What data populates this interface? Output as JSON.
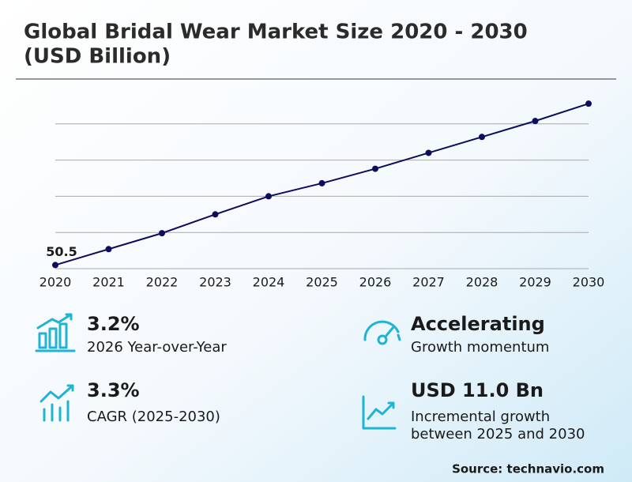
{
  "title": "Global Bridal Wear Market Size 2020 - 2030",
  "subtitle": "(USD Billion)",
  "chart_data": {
    "type": "line",
    "categories": [
      "2020",
      "2021",
      "2022",
      "2023",
      "2024",
      "2025",
      "2026",
      "2027",
      "2028",
      "2029",
      "2030"
    ],
    "values": [
      50.5,
      52.7,
      54.9,
      57.5,
      60.0,
      61.8,
      63.8,
      66.0,
      68.2,
      70.4,
      72.8
    ],
    "value_labels": [
      "50.5",
      null,
      null,
      null,
      null,
      null,
      null,
      null,
      null,
      null,
      null
    ],
    "color": "#0d0d5c",
    "ylim": [
      50,
      75
    ],
    "yticks": [
      50,
      55,
      60,
      65,
      70
    ],
    "show_ytick_labels": false,
    "grid": true
  },
  "stats": [
    {
      "value": "3.2%",
      "label": "2026 Year-over-Year"
    },
    {
      "value": "Accelerating",
      "label": "Growth momentum"
    },
    {
      "value": "3.3%",
      "label": "CAGR (2025-2030)"
    },
    {
      "value": "USD 11.0 Bn",
      "label": [
        "Incremental growth",
        "between 2025 and 2030"
      ]
    }
  ],
  "source": "Source: technavio.com"
}
